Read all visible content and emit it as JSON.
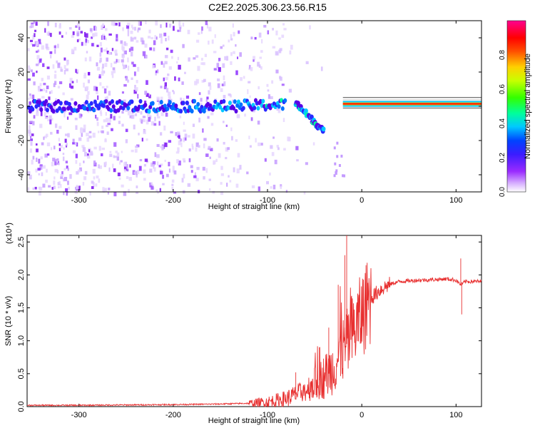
{
  "title": "C2E2.2025.306.23.56.R15",
  "chart_data": [
    {
      "type": "heatmap",
      "panel": "spectrogram",
      "xlabel": "Height of straight line (km)",
      "ylabel": "Frequency (Hz)",
      "xlim": [
        -355,
        127
      ],
      "ylim": [
        -50,
        50
      ],
      "xticks": [
        -300,
        -200,
        -100,
        0,
        100
      ],
      "yticks": [
        -40,
        -20,
        0,
        20,
        40
      ],
      "colorbar": {
        "label": "Normalized spectral amplitude",
        "range": [
          0,
          1
        ],
        "ticks": [
          0.0,
          0.2,
          0.4,
          0.6,
          0.8
        ]
      },
      "features": {
        "diffuse_noise_region_km": [
          -355,
          -100
        ],
        "main_signal_frequency_hz": 0,
        "downward_branch": {
          "x_start": -70,
          "x_end": -40,
          "f_start": 2,
          "f_end": -15
        },
        "strong_band_km": [
          -20,
          127
        ],
        "strong_band_frequency_hz": 1
      }
    },
    {
      "type": "line",
      "panel": "snr",
      "xlabel": "Height of straight line (km)",
      "ylabel": "SNR (10 * v/v)",
      "multiplier_label": "(x10⁴)",
      "xlim": [
        -355,
        127
      ],
      "ylim": [
        0,
        2.6
      ],
      "xticks": [
        -300,
        -200,
        -100,
        0,
        100
      ],
      "yticks": [
        0.0,
        0.5,
        1.0,
        1.5,
        2.0,
        2.5
      ],
      "series": [
        {
          "name": "SNR",
          "color": "#e83030",
          "x": [
            -355,
            -300,
            -250,
            -200,
            -150,
            -120,
            -100,
            -80,
            -60,
            -50,
            -40,
            -30,
            -20,
            -10,
            0,
            10,
            20,
            30,
            40,
            60,
            80,
            90,
            100,
            105,
            110,
            127
          ],
          "y": [
            0.02,
            0.02,
            0.025,
            0.03,
            0.04,
            0.05,
            0.07,
            0.12,
            0.25,
            0.35,
            0.45,
            0.6,
            0.85,
            1.1,
            1.4,
            1.65,
            1.78,
            1.86,
            1.9,
            1.92,
            1.93,
            1.94,
            1.92,
            1.85,
            1.9,
            1.9
          ],
          "spikes": [
            {
              "x": -16,
              "y": 2.6
            },
            {
              "x": -18,
              "y": 2.3
            },
            {
              "x": -25,
              "y": 1.85
            },
            {
              "x": -35,
              "y": 1.2
            },
            {
              "x": -45,
              "y": 0.9
            },
            {
              "x": -70,
              "y": 0.52
            },
            {
              "x": 105,
              "y": 2.25
            },
            {
              "x": 106,
              "y": 1.4
            }
          ]
        }
      ]
    }
  ]
}
